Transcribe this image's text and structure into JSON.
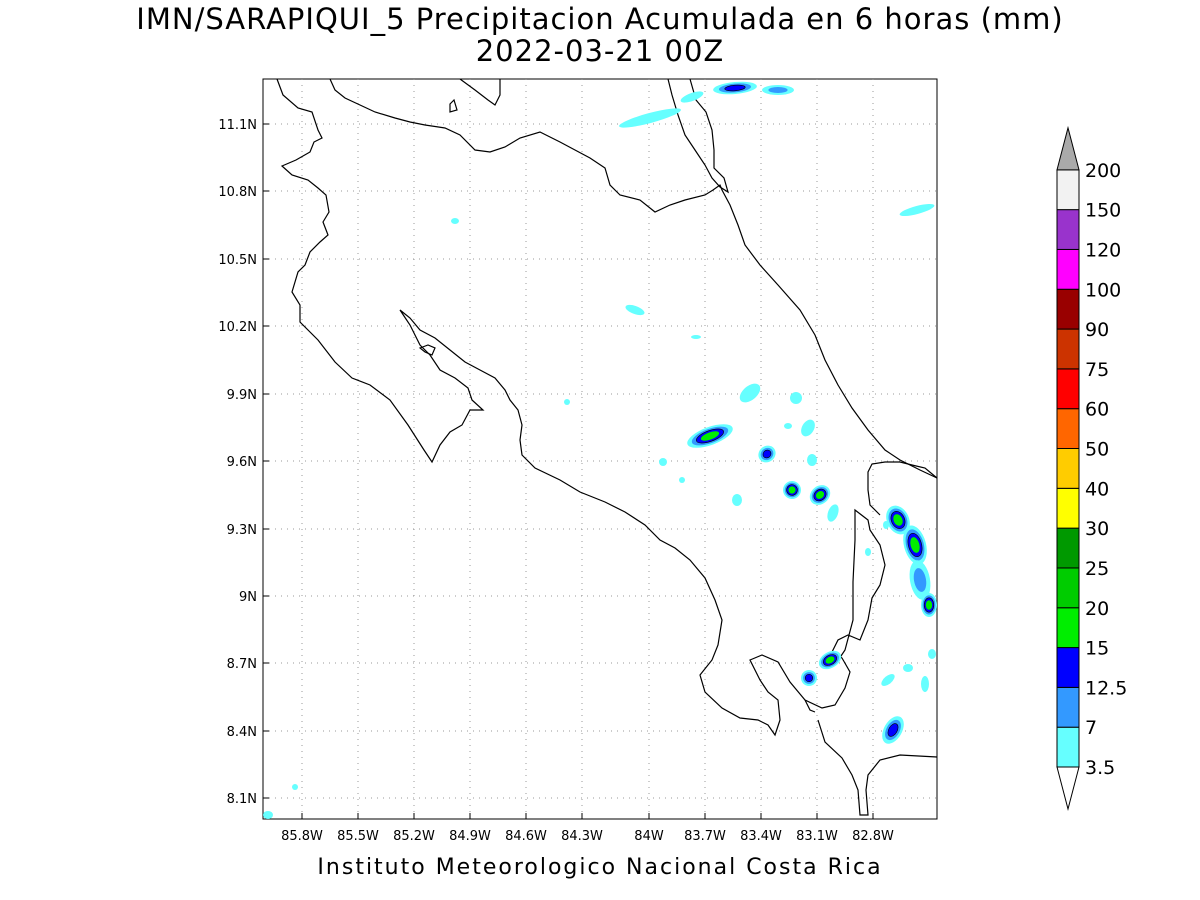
{
  "title": {
    "line1": "IMN/SARAPIQUI_5 Precipitacion Acumulada en 6 horas (mm)",
    "line2": "2022-03-21 00Z"
  },
  "footer": "Instituto Meteorologico Nacional Costa Rica",
  "map": {
    "lon_ticks": [
      "85.8W",
      "85.5W",
      "85.2W",
      "84.9W",
      "84.6W",
      "84.3W",
      "84W",
      "83.7W",
      "83.4W",
      "83.1W",
      "82.8W"
    ],
    "lat_ticks": [
      "11.1N",
      "10.8N",
      "10.5N",
      "10.2N",
      "9.9N",
      "9.6N",
      "9.3N",
      "9N",
      "8.7N",
      "8.4N",
      "8.1N"
    ]
  },
  "colorbar": {
    "levels": [
      "3.5",
      "7",
      "12.5",
      "15",
      "20",
      "25",
      "30",
      "40",
      "50",
      "60",
      "75",
      "90",
      "100",
      "120",
      "150",
      "200"
    ],
    "colors": [
      "#66ffff",
      "#3399ff",
      "#0000ff",
      "#00ee00",
      "#00cc00",
      "#009900",
      "#ffff00",
      "#ffcc00",
      "#ff6600",
      "#ff0000",
      "#cc3300",
      "#990000",
      "#ff00ff",
      "#9933cc",
      "#f2f2f2",
      "#aaaaaa"
    ]
  }
}
